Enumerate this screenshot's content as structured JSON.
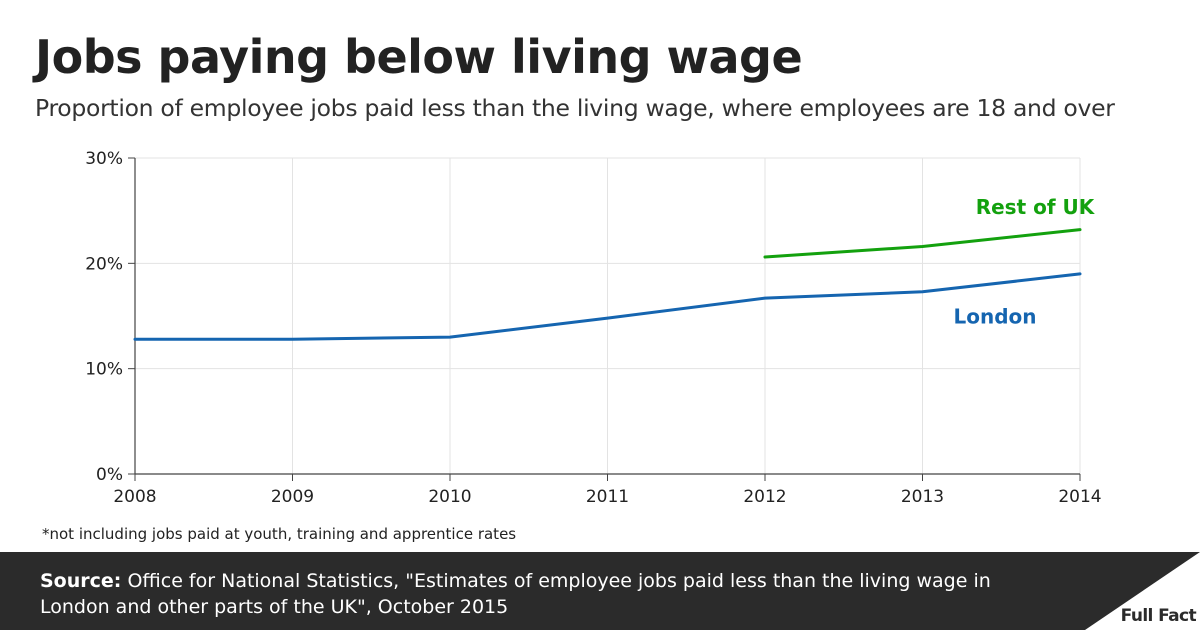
{
  "title": "Jobs paying below living wage",
  "subtitle": "Proportion of employee jobs paid less than the living wage, where employees are 18 and over",
  "footnote": "*not including jobs paid at youth, training and apprentice rates",
  "source": {
    "label": "Source:",
    "text": "Office for National Statistics, \"Estimates of employee jobs paid less than the living wage in London and other parts of the UK\", October 2015"
  },
  "logo": {
    "text": "Full Fact"
  },
  "chart_data": {
    "type": "line",
    "title": "Jobs paying below living wage",
    "xlabel": "",
    "ylabel": "",
    "x": [
      2008,
      2009,
      2010,
      2011,
      2012,
      2013,
      2014
    ],
    "xlim": [
      2008,
      2014
    ],
    "ylim": [
      0,
      30
    ],
    "yticks": [
      0,
      10,
      20,
      30
    ],
    "ytick_labels": [
      "0%",
      "10%",
      "20%",
      "30%"
    ],
    "xtick_labels": [
      "2008",
      "2009",
      "2010",
      "2011",
      "2012",
      "2013",
      "2014"
    ],
    "grid": true,
    "legend": "inline labels",
    "series": [
      {
        "name": "London",
        "color": "#1565b0",
        "values": [
          12.8,
          12.8,
          13.0,
          14.8,
          16.7,
          17.3,
          19.0
        ]
      },
      {
        "name": "Rest of UK",
        "color": "#13a10e",
        "values": [
          null,
          null,
          null,
          null,
          20.6,
          21.6,
          23.2
        ]
      }
    ]
  }
}
